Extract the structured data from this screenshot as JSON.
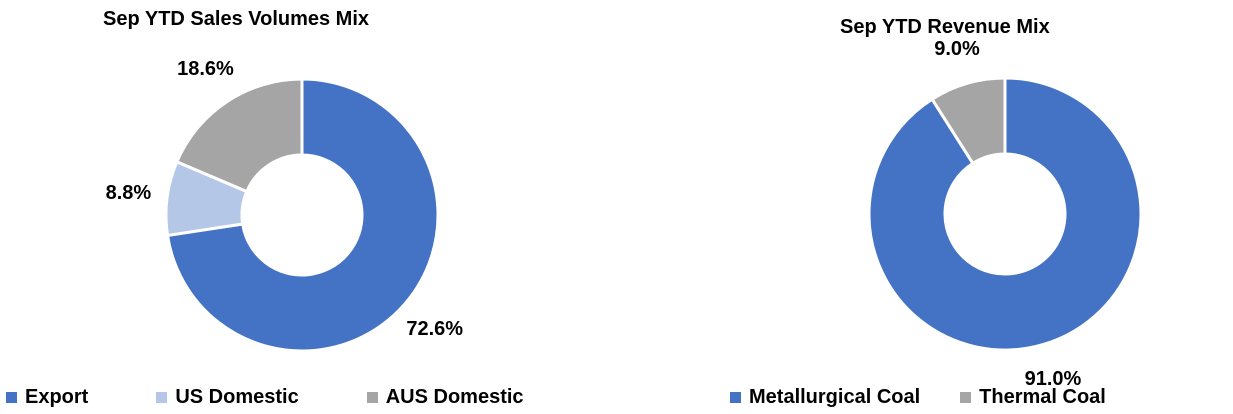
{
  "chart_data": [
    {
      "type": "pie",
      "title": "Sep YTD Sales Volumes Mix",
      "categories": [
        "Export",
        "US Domestic",
        "AUS Domestic"
      ],
      "values": [
        72.6,
        8.8,
        18.6
      ],
      "labels": [
        "72.6%",
        "8.8%",
        "18.6%"
      ],
      "colors": [
        "#4472C4",
        "#B4C7E7",
        "#A5A5A5"
      ],
      "legend_position": "bottom"
    },
    {
      "type": "pie",
      "title": "Sep YTD Revenue Mix",
      "categories": [
        "Metallurgical Coal",
        "Thermal Coal"
      ],
      "values": [
        91.0,
        9.0
      ],
      "labels": [
        "91.0%",
        "9.0%"
      ],
      "colors": [
        "#4472C4",
        "#A5A5A5"
      ],
      "legend_position": "bottom"
    }
  ]
}
